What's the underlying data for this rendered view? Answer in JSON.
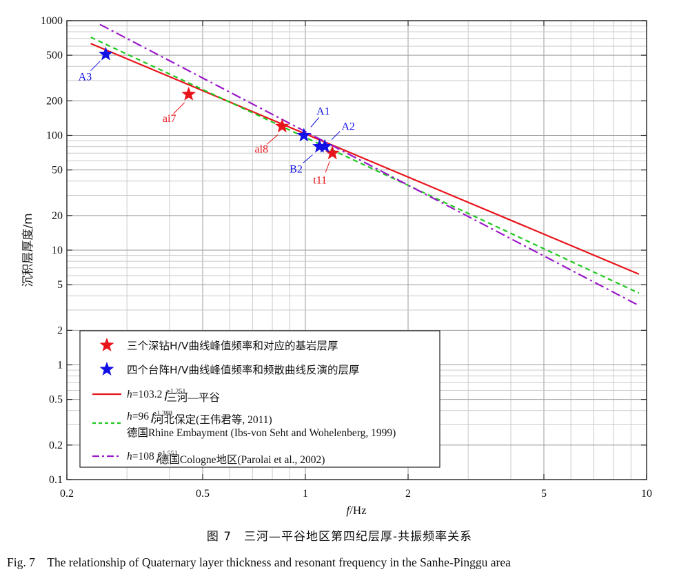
{
  "chart_data": {
    "type": "scatter",
    "xscale": "log",
    "yscale": "log",
    "xlim": [
      0.2,
      10
    ],
    "ylim": [
      0.1,
      1000
    ],
    "xlabel_italic": "f",
    "xlabel_rest": "/Hz",
    "ylabel": "沉积层厚度/m",
    "xticks": [
      {
        "v": 0.2,
        "label": "0.2"
      },
      {
        "v": 0.5,
        "label": "0.5"
      },
      {
        "v": 1,
        "label": "1"
      },
      {
        "v": 2,
        "label": "2"
      },
      {
        "v": 5,
        "label": "5"
      },
      {
        "v": 10,
        "label": "10"
      }
    ],
    "yticks": [
      {
        "v": 0.1,
        "label": "0.1"
      },
      {
        "v": 0.2,
        "label": "0.2"
      },
      {
        "v": 0.5,
        "label": "0.5"
      },
      {
        "v": 1,
        "label": "1"
      },
      {
        "v": 2,
        "label": "2"
      },
      {
        "v": 5,
        "label": "5"
      },
      {
        "v": 10,
        "label": "10"
      },
      {
        "v": 20,
        "label": "20"
      },
      {
        "v": 50,
        "label": "50"
      },
      {
        "v": 100,
        "label": "100"
      },
      {
        "v": 200,
        "label": "200"
      },
      {
        "v": 500,
        "label": "500"
      },
      {
        "v": 1000,
        "label": "1000"
      }
    ],
    "grid": true,
    "legend_position": "bottom-left",
    "series": [
      {
        "kind": "points",
        "marker": "star",
        "color": "#e8141b",
        "legend": "三个深钻H/V曲线峰值频率和对应的基岩层厚",
        "points": [
          {
            "label": "ai7",
            "x": 0.455,
            "y": 228
          },
          {
            "label": "al8",
            "x": 0.855,
            "y": 120
          },
          {
            "label": "t11",
            "x": 1.2,
            "y": 70
          }
        ]
      },
      {
        "kind": "points",
        "marker": "star",
        "color": "#1111e6",
        "legend": "四个台阵H/V曲线峰值频率和频散曲线反演的层厚",
        "points": [
          {
            "label": "A3",
            "x": 0.26,
            "y": 510
          },
          {
            "label": "A1",
            "x": 0.99,
            "y": 100
          },
          {
            "label": "B2",
            "x": 1.1,
            "y": 80
          },
          {
            "label": "A2",
            "x": 1.14,
            "y": 80
          }
        ]
      },
      {
        "kind": "curve",
        "color": "#e8141b",
        "dash": "solid",
        "a": 103.2,
        "b": -1.251,
        "x_range": [
          0.235,
          9.5
        ],
        "legend_prefix": "h",
        "legend_coef": "=103.2 ",
        "legend_var": "f",
        "legend_sub": "r",
        "legend_sup": "-1.251",
        "legend_tail": "三河—平谷"
      },
      {
        "kind": "curve",
        "color": "#1ec91e",
        "dash": "dash",
        "a": 96,
        "b": -1.388,
        "x_range": [
          0.235,
          9.5
        ],
        "legend_prefix": "h",
        "legend_coef": "=96 ",
        "legend_var": "f",
        "legend_sub": "r",
        "legend_sup": "-1.388",
        "legend_tail": "河北保定(王伟君等, 2011)",
        "legend_line2": "德国Rhine Embayment (Ibs-von Seht and Wohelenberg, 1999)"
      },
      {
        "kind": "curve",
        "color": "#9a18c8",
        "dash": "dashdot",
        "a": 108,
        "b": -1.551,
        "x_range": [
          0.25,
          9.5
        ],
        "legend_prefix": "h",
        "legend_coef": "=108 ",
        "legend_var": "f",
        "legend_sub": "r",
        "legend_sup": "-1.551",
        "legend_tail": "德国Cologne地区(Parolai et al., 2002)"
      }
    ]
  },
  "caption_cn": "图 7　三河—平谷地区第四纪层厚-共振频率关系",
  "caption_en": "Fig. 7　The relationship of Quaternary layer thickness and resonant frequency in the Sanhe-Pinggu area"
}
